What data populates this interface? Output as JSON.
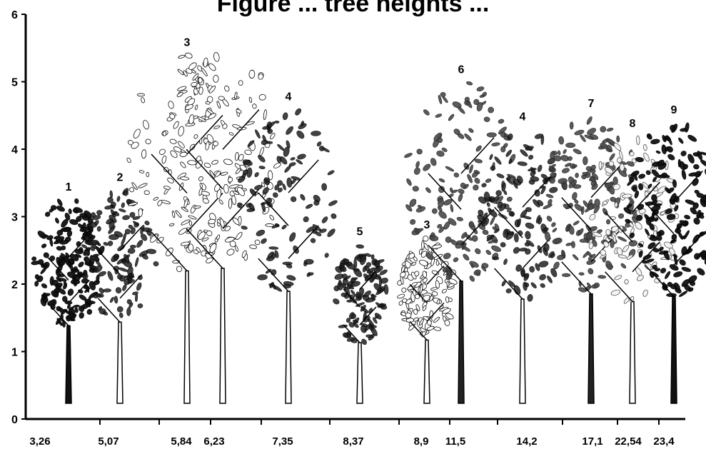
{
  "title": "Figure ... tree heights ...",
  "y_axis": {
    "min": 0,
    "max": 6,
    "ticks": [
      "0",
      "1",
      "2",
      "3",
      "4",
      "5",
      "6"
    ]
  },
  "trees": [
    {
      "label": "1",
      "x_label": "3,26",
      "height": 3.26,
      "style": "dark"
    },
    {
      "label": "2",
      "x_label": "5,07",
      "height": 3.4,
      "style": "sparse"
    },
    {
      "label": "3",
      "x_label": "5,84",
      "height": 5.4,
      "style": "leafy"
    },
    {
      "label": "",
      "x_label": "6,23",
      "height": 5.5,
      "style": "leafy"
    },
    {
      "label": "4",
      "x_label": "7,35",
      "height": 4.6,
      "style": "sparse"
    },
    {
      "label": "5",
      "x_label": "8,37",
      "height": 2.6,
      "style": "sparse"
    },
    {
      "label": "3",
      "x_label": "8,9",
      "height": 2.7,
      "style": "leafy"
    },
    {
      "label": "6",
      "x_label": "11,5",
      "height": 5.0,
      "style": "grey"
    },
    {
      "label": "4",
      "x_label": "14,2",
      "height": 4.3,
      "style": "sparse"
    },
    {
      "label": "7",
      "x_label": "17,1",
      "height": 4.5,
      "style": "grey"
    },
    {
      "label": "8",
      "x_label": "22,54",
      "height": 4.2,
      "style": "light"
    },
    {
      "label": "9",
      "x_label": "23,4",
      "height": 4.4,
      "style": "dark"
    }
  ]
}
